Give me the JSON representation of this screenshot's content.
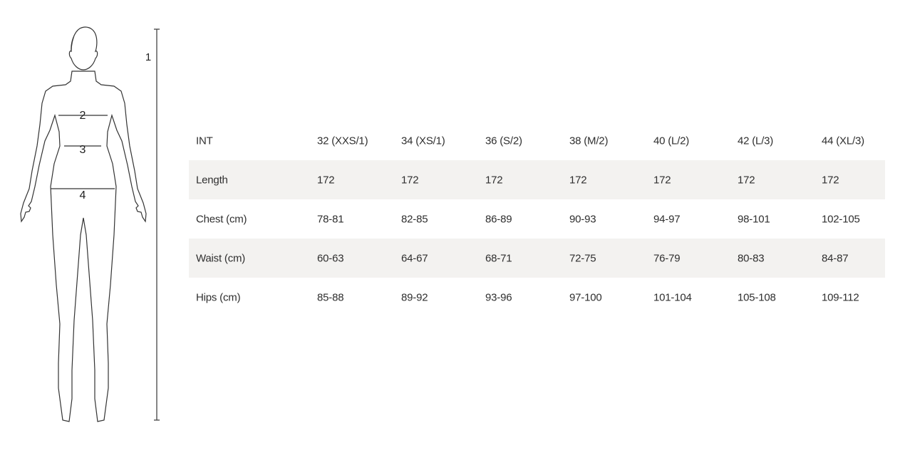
{
  "figure": {
    "labels": {
      "length": "1",
      "chest": "2",
      "waist": "3",
      "hips": "4"
    }
  },
  "table": {
    "header": {
      "label": "INT",
      "sizes": [
        "32 (XXS/1)",
        "34 (XS/1)",
        "36 (S/2)",
        "38 (M/2)",
        "40 (L/2)",
        "42 (L/3)",
        "44 (XL/3)"
      ]
    },
    "rows": [
      {
        "label": "Length",
        "values": [
          "172",
          "172",
          "172",
          "172",
          "172",
          "172",
          "172"
        ],
        "shaded": true
      },
      {
        "label": "Chest (cm)",
        "values": [
          "78-81",
          "82-85",
          "86-89",
          "90-93",
          "94-97",
          "98-101",
          "102-105"
        ],
        "shaded": false
      },
      {
        "label": "Waist (cm)",
        "values": [
          "60-63",
          "64-67",
          "68-71",
          "72-75",
          "76-79",
          "80-83",
          "84-87"
        ],
        "shaded": true
      },
      {
        "label": "Hips (cm)",
        "values": [
          "85-88",
          "89-92",
          "93-96",
          "97-100",
          "101-104",
          "105-108",
          "109-112"
        ],
        "shaded": false
      }
    ],
    "shade_color": "#f3f2f0"
  }
}
